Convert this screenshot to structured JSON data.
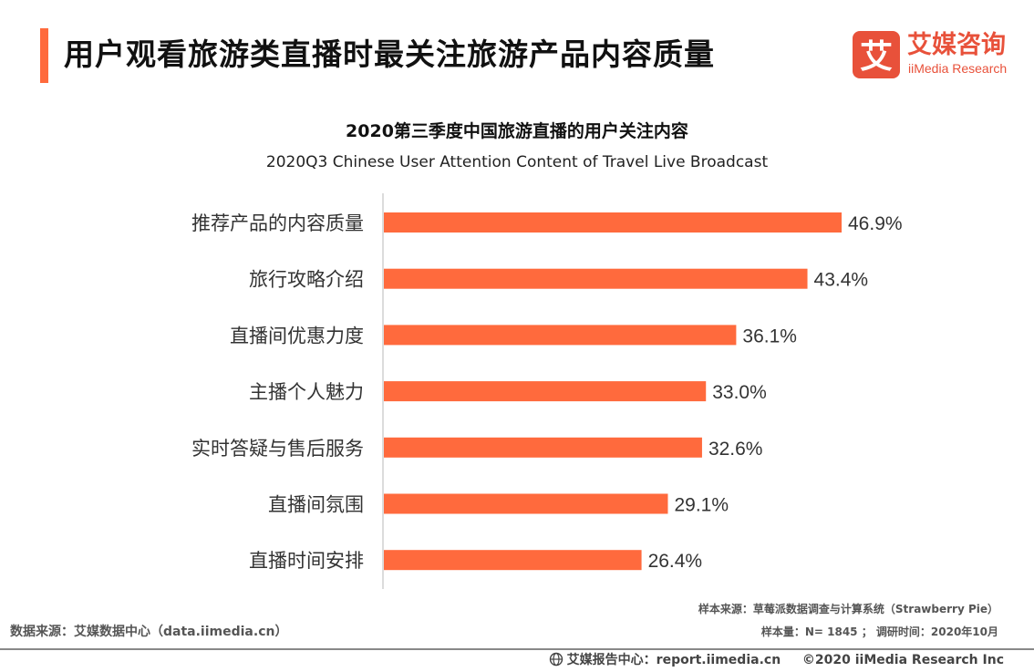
{
  "header": {
    "title": "用户观看旅游类直播时最关注旅游产品内容质量",
    "accent_color": "#FF6A3D"
  },
  "logo": {
    "glyph": "艾",
    "name_zh": "艾媒咨询",
    "name_en": "iiMedia Research",
    "color": "#E8513A"
  },
  "chart_data": {
    "type": "bar",
    "orientation": "horizontal",
    "title": "2020第三季度中国旅游直播的用户关注内容",
    "subtitle": "2020Q3 Chinese User Attention Content of Travel Live Broadcast",
    "categories": [
      "推荐产品的内容质量",
      "旅行攻略介绍",
      "直播间优惠力度",
      "主播个人魅力",
      "实时答疑与售后服务",
      "直播间氛围",
      "直播时间安排"
    ],
    "values": [
      46.9,
      43.4,
      36.1,
      33.0,
      32.6,
      29.1,
      26.4
    ],
    "value_labels": [
      "46.9%",
      "43.4%",
      "36.1%",
      "33.0%",
      "32.6%",
      "29.1%",
      "26.4%"
    ],
    "unit": "%",
    "xlim": [
      0,
      50
    ],
    "grid": false,
    "bar_color": "#FF6A3D"
  },
  "footer": {
    "source": "数据来源：艾媒数据中心（data.iimedia.cn）",
    "sample_source": "样本来源：草莓派数据调查与计算系统（Strawberry Pie）",
    "sample_size": "样本量：N= 1845 ； 调研时间：2020年10月",
    "report_center": "艾媒报告中心：report.iimedia.cn",
    "copyright": "©2020  iiMedia Research  Inc"
  }
}
